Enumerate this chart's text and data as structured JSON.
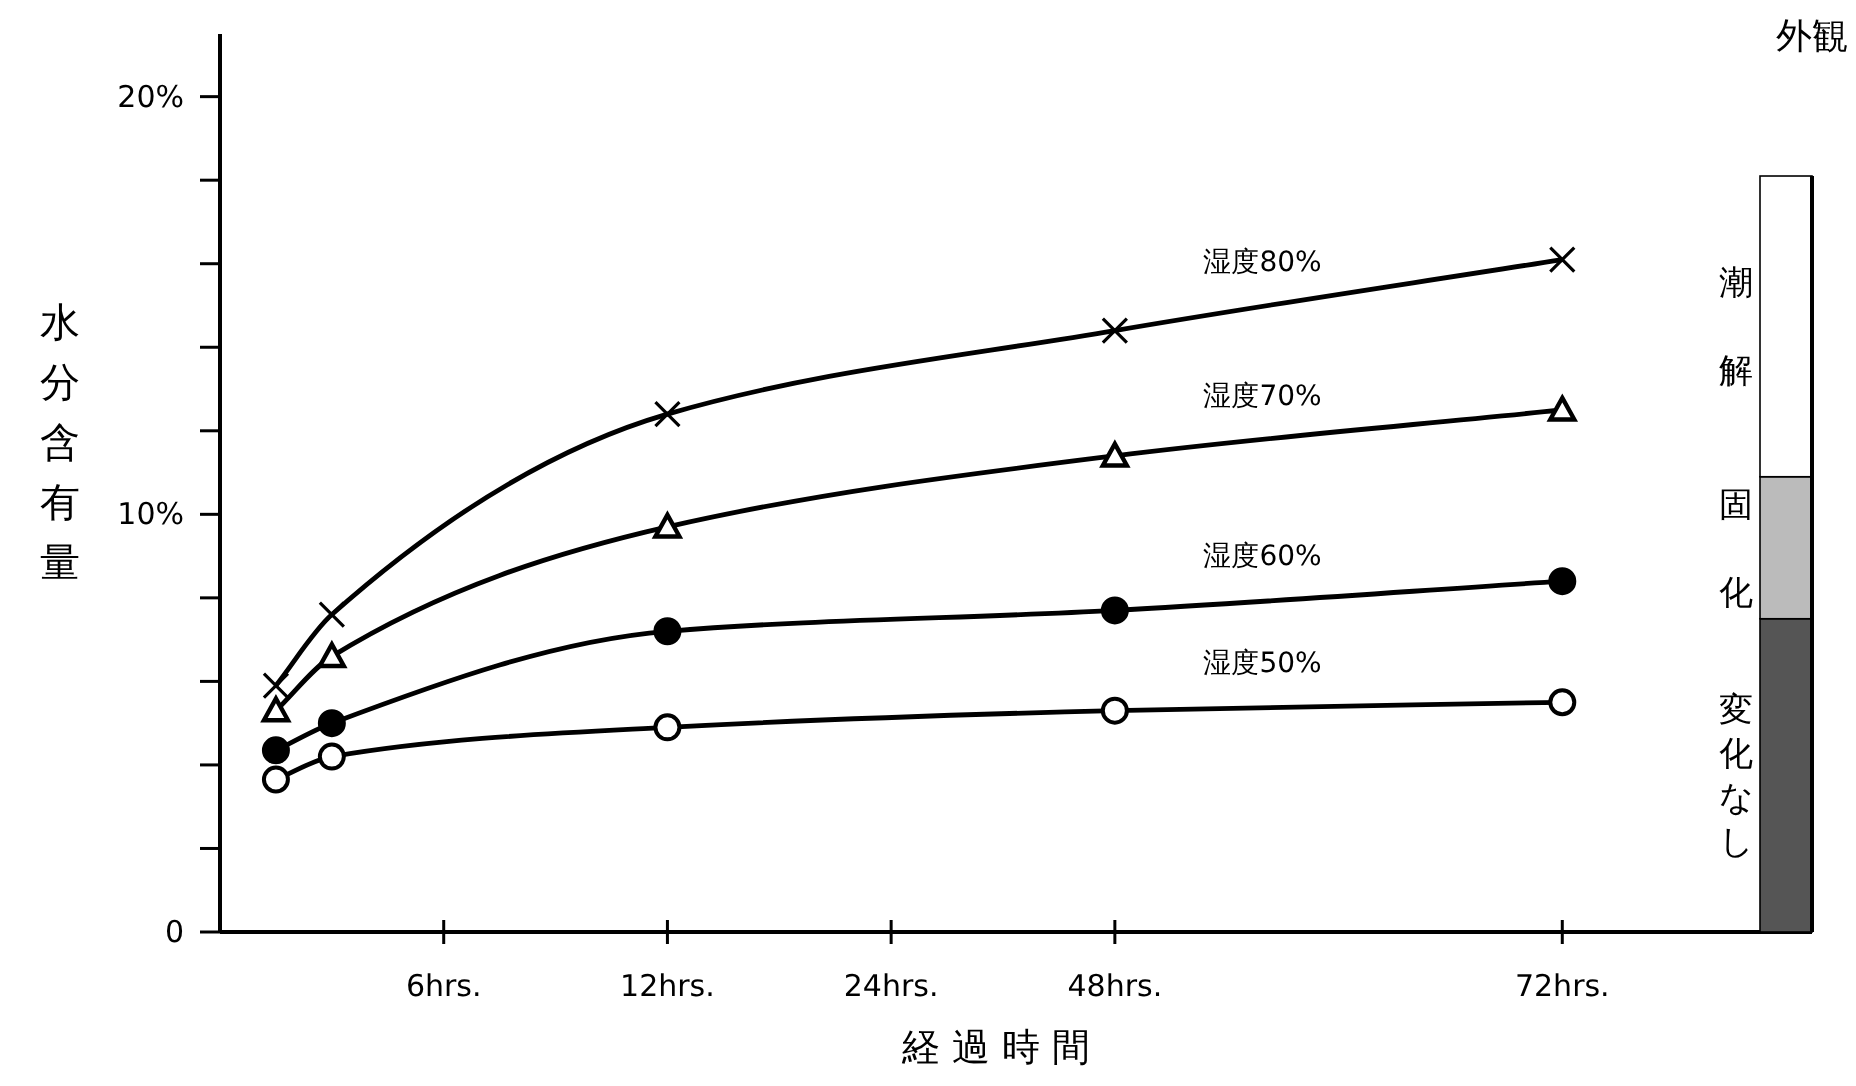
{
  "chart_data": {
    "type": "line",
    "xlabel": "経 過 時 間",
    "ylabel": "水分含有量",
    "ylim": [
      0,
      21.5
    ],
    "categories": [
      null,
      null,
      null,
      "6hrs.",
      null,
      null,
      null,
      "12hrs.",
      null,
      null,
      null,
      "24hrs.",
      null,
      null,
      null,
      "48hrs.",
      null,
      null,
      null,
      null,
      null,
      null,
      null,
      "72hrs.",
      null,
      null,
      null,
      null
    ],
    "stacked": true,
    "yticks": [
      0,
      {
        "value": 2,
        "label": null
      },
      {
        "value": 4,
        "label": null
      },
      {
        "value": 6,
        "label": null
      },
      {
        "value": 8,
        "label": null
      },
      {
        "value": 10,
        "label": "10%"
      },
      {
        "value": 12,
        "label": null
      },
      {
        "value": 14,
        "label": null
      },
      {
        "value": 16,
        "label": null
      },
      {
        "value": 18,
        "label": null
      },
      {
        "value": 20,
        "label": "20%"
      }
    ],
    "grid": false,
    "legend": false,
    "line_style": "solid",
    "series": [
      {
        "name": "湿度80%",
        "color": "#000000",
        "marker": "cross",
        "values": [
          5.9,
          7.6,
          null,
          null,
          null,
          null,
          null,
          12.4,
          null,
          null,
          null,
          null,
          null,
          null,
          null,
          14.4,
          null,
          null,
          null,
          null,
          null,
          null,
          null,
          16.1,
          null,
          null,
          null,
          null
        ]
      },
      {
        "name": "湿度70%",
        "color": "#000000",
        "marker": "triangle",
        "values": [
          5.3,
          6.6,
          null,
          null,
          null,
          null,
          null,
          9.7,
          null,
          null,
          null,
          null,
          null,
          null,
          null,
          11.4,
          null,
          null,
          null,
          null,
          null,
          null,
          null,
          12.5,
          null,
          null,
          null,
          null
        ]
      },
      {
        "name": "湿度60%",
        "color": "#000000",
        "marker": "circle",
        "values": [
          4.35,
          5.0,
          null,
          null,
          null,
          null,
          null,
          7.2,
          null,
          null,
          null,
          null,
          null,
          null,
          null,
          7.7,
          null,
          null,
          null,
          null,
          null,
          null,
          null,
          8.4,
          null,
          null,
          null,
          null
        ]
      },
      {
        "name": "湿度50%",
        "color": "#000000",
        "colors": [
          "#ffffff",
          "#ffffff",
          null,
          null,
          null,
          null,
          null,
          "#ffffff",
          null,
          null,
          null,
          null,
          null,
          null,
          null,
          "#ffffff",
          null,
          null,
          null,
          null,
          null,
          null,
          null,
          "#ffffff",
          null,
          null,
          null,
          null
        ],
        "marker": "circle",
        "values": [
          3.65,
          4.2,
          null,
          null,
          null,
          null,
          null,
          4.9,
          null,
          null,
          null,
          null,
          null,
          null,
          null,
          5.3,
          null,
          null,
          null,
          null,
          null,
          null,
          null,
          5.5,
          null,
          null,
          null,
          null
        ]
      },
      {
        "type": "bar",
        "name": "変化なし",
        "color": "#555555",
        "values": [
          null,
          null,
          null,
          null,
          null,
          null,
          null,
          null,
          null,
          null,
          null,
          null,
          null,
          null,
          null,
          null,
          null,
          null,
          null,
          null,
          null,
          null,
          null,
          null,
          null,
          null,
          null,
          7.5
        ]
      },
      {
        "type": "bar",
        "name": "固化",
        "color": "#bbbbbb",
        "values": [
          null,
          null,
          null,
          null,
          null,
          null,
          null,
          null,
          null,
          null,
          null,
          null,
          null,
          null,
          null,
          null,
          null,
          null,
          null,
          null,
          null,
          null,
          null,
          null,
          null,
          null,
          null,
          3.4
        ]
      },
      {
        "type": "bar",
        "name": "潮解",
        "color": "#ffffff",
        "values": [
          null,
          null,
          null,
          null,
          null,
          null,
          null,
          null,
          null,
          null,
          null,
          null,
          null,
          null,
          null,
          null,
          null,
          null,
          null,
          null,
          null,
          null,
          null,
          null,
          null,
          null,
          null,
          7.2
        ]
      }
    ],
    "annotations": [
      "外観"
    ]
  }
}
